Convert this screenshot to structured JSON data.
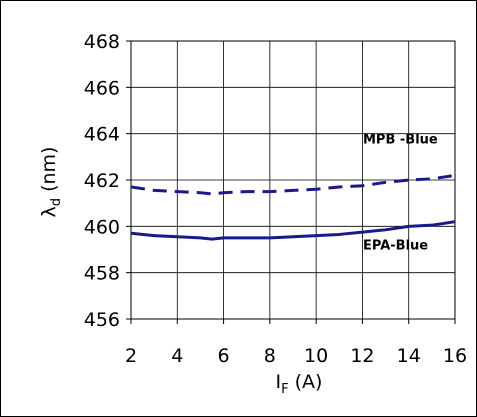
{
  "chart_data": {
    "type": "line",
    "xlabel_main": "I",
    "xlabel_sub": "F",
    "xlabel_unit": " (A)",
    "ylabel_main": "λ",
    "ylabel_sub": "d",
    "ylabel_unit": " (nm)",
    "xlim": [
      2,
      16
    ],
    "ylim": [
      456,
      468
    ],
    "xticks": [
      2,
      4,
      6,
      8,
      10,
      12,
      14,
      16
    ],
    "yticks": [
      456,
      458,
      460,
      462,
      464,
      466,
      468
    ],
    "grid": true,
    "series": [
      {
        "name": "MPB -Blue",
        "color": "#1a1a8c",
        "style": "dashed",
        "x": [
          2,
          3,
          4,
          5,
          5.5,
          6,
          7,
          8,
          9,
          10,
          11,
          12,
          13,
          14,
          15,
          16
        ],
        "y": [
          461.7,
          461.55,
          461.5,
          461.45,
          461.4,
          461.45,
          461.5,
          461.5,
          461.55,
          461.6,
          461.7,
          461.75,
          461.9,
          462.0,
          462.05,
          462.2
        ]
      },
      {
        "name": "EPA-Blue",
        "color": "#1a1a8c",
        "style": "solid",
        "x": [
          2,
          3,
          4,
          5,
          5.5,
          6,
          7,
          8,
          9,
          10,
          11,
          12,
          13,
          14,
          15,
          16
        ],
        "y": [
          459.7,
          459.6,
          459.55,
          459.5,
          459.45,
          459.5,
          459.5,
          459.5,
          459.55,
          459.6,
          459.65,
          459.75,
          459.85,
          460.0,
          460.05,
          460.2
        ]
      }
    ]
  }
}
